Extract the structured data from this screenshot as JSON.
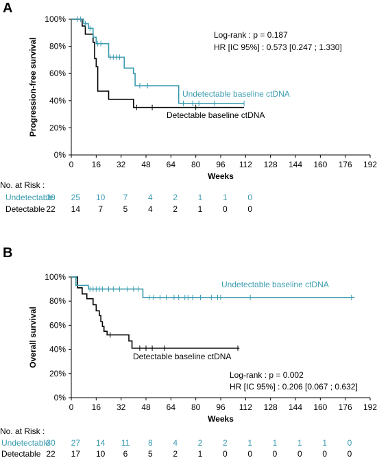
{
  "colors": {
    "undetectable": "#3a9bb0",
    "detectable": "#000000"
  },
  "chart_data": [
    {
      "type": "line",
      "panel_label": "A",
      "xlabel": "Weeks",
      "ylabel": "Progression-free survival",
      "xlim": [
        0,
        192
      ],
      "ylim": [
        0,
        100
      ],
      "x_ticks": [
        0,
        16,
        32,
        48,
        64,
        80,
        96,
        112,
        128,
        144,
        160,
        176,
        192
      ],
      "y_ticks": [
        {
          "value": 0,
          "label": "0%"
        },
        {
          "value": 20,
          "label": "20%"
        },
        {
          "value": 40,
          "label": "40%"
        },
        {
          "value": 60,
          "label": "60%"
        },
        {
          "value": 80,
          "label": "80%"
        },
        {
          "value": 100,
          "label": "100%"
        }
      ],
      "annotations": [
        "Log-rank : p = 0.187",
        "HR [IC 95%] : 0.573 [0.247 ; 1.330]"
      ],
      "series": [
        {
          "name": "Undetectable baseline ctDNA",
          "color": "#3a9bb0",
          "steps": [
            [
              0,
              100
            ],
            [
              8,
              96.7
            ],
            [
              11,
              93.3
            ],
            [
              14,
              86.7
            ],
            [
              16,
              82
            ],
            [
              21,
              82
            ],
            [
              24,
              72
            ],
            [
              32,
              72
            ],
            [
              34,
              64
            ],
            [
              40,
              60
            ],
            [
              41,
              51
            ],
            [
              53,
              51
            ],
            [
              68,
              51
            ],
            [
              69,
              38
            ],
            [
              111,
              38
            ]
          ],
          "censors": [
            [
              4,
              100
            ],
            [
              6,
              100
            ],
            [
              9,
              96.7
            ],
            [
              12,
              93.3
            ],
            [
              17,
              82
            ],
            [
              19,
              82
            ],
            [
              25,
              72
            ],
            [
              27,
              72
            ],
            [
              29,
              72
            ],
            [
              31,
              72
            ],
            [
              44,
              51
            ],
            [
              49,
              51
            ],
            [
              72,
              38
            ],
            [
              78,
              38
            ],
            [
              82,
              38
            ],
            [
              92,
              38
            ],
            [
              111,
              38
            ]
          ]
        },
        {
          "name": "Detectable baseline ctDNA",
          "color": "#000000",
          "steps": [
            [
              0,
              100
            ],
            [
              7,
              95
            ],
            [
              9,
              89
            ],
            [
              14,
              83
            ],
            [
              15,
              71
            ],
            [
              16,
              65
            ],
            [
              17,
              47
            ],
            [
              23,
              47
            ],
            [
              24,
              41
            ],
            [
              39,
              41
            ],
            [
              40,
              35
            ],
            [
              111,
              35
            ]
          ],
          "censors": [
            [
              42,
              35
            ],
            [
              52,
              35
            ],
            [
              80,
              35
            ]
          ]
        }
      ],
      "curve_labels": [
        {
          "text": "Undetectable baseline ctDNA",
          "series": 0
        },
        {
          "text": "Detectable baseline ctDNA",
          "series": 1
        }
      ],
      "risk_table": {
        "header": "No. at Risk :",
        "times": [
          0,
          16,
          32,
          48,
          64,
          80,
          96,
          112,
          128
        ],
        "rows": [
          {
            "label": "Undetectable",
            "color": "#3a9bb0",
            "values": [
              "30",
              "25",
              "10",
              "7",
              "4",
              "2",
              "1",
              "1",
              "0"
            ]
          },
          {
            "label": "Detectable",
            "color": "#000000",
            "values": [
              "22",
              "14",
              "7",
              "5",
              "4",
              "2",
              "1",
              "0",
              "0"
            ]
          }
        ]
      }
    },
    {
      "type": "line",
      "panel_label": "B",
      "xlabel": "Weeks",
      "ylabel": "Overall survival",
      "xlim": [
        0,
        192
      ],
      "ylim": [
        0,
        100
      ],
      "x_ticks": [
        0,
        16,
        32,
        48,
        64,
        80,
        96,
        112,
        128,
        144,
        160,
        176,
        192
      ],
      "y_ticks": [
        {
          "value": 0,
          "label": "0%"
        },
        {
          "value": 20,
          "label": "20%"
        },
        {
          "value": 40,
          "label": "40%"
        },
        {
          "value": 60,
          "label": "60%"
        },
        {
          "value": 80,
          "label": "80%"
        },
        {
          "value": 100,
          "label": "100%"
        }
      ],
      "annotations": [
        "Log-rank : p = 0.002",
        "HR [IC 95%] : 0.206 [0.067 ; 0.632]"
      ],
      "series": [
        {
          "name": "Undetectable baseline ctDNA",
          "color": "#3a9bb0",
          "steps": [
            [
              0,
              100
            ],
            [
              3,
              93
            ],
            [
              11,
              90
            ],
            [
              45,
              90
            ],
            [
              46,
              83
            ],
            [
              182,
              83
            ]
          ],
          "censors": [
            [
              12,
              90
            ],
            [
              14,
              90
            ],
            [
              16,
              90
            ],
            [
              18,
              90
            ],
            [
              20,
              90
            ],
            [
              24,
              90
            ],
            [
              27,
              90
            ],
            [
              31,
              90
            ],
            [
              36,
              90
            ],
            [
              40,
              90
            ],
            [
              43,
              90
            ],
            [
              50,
              83
            ],
            [
              53,
              83
            ],
            [
              57,
              83
            ],
            [
              61,
              83
            ],
            [
              66,
              83
            ],
            [
              69,
              83
            ],
            [
              73,
              83
            ],
            [
              75,
              83
            ],
            [
              78,
              83
            ],
            [
              83,
              83
            ],
            [
              90,
              83
            ],
            [
              94,
              83
            ],
            [
              96,
              83
            ],
            [
              115,
              83
            ],
            [
              180,
              83
            ]
          ]
        },
        {
          "name": "Detectable baseline ctDNA",
          "color": "#000000",
          "steps": [
            [
              0,
              100
            ],
            [
              4,
              91
            ],
            [
              7,
              86
            ],
            [
              10,
              82
            ],
            [
              14,
              77
            ],
            [
              16,
              72
            ],
            [
              18,
              68
            ],
            [
              19,
              63
            ],
            [
              20,
              59
            ],
            [
              21,
              55
            ],
            [
              23,
              52
            ],
            [
              36,
              52
            ],
            [
              37,
              47
            ],
            [
              39,
              41
            ],
            [
              108,
              41
            ]
          ],
          "censors": [
            [
              25,
              52
            ],
            [
              44,
              41
            ],
            [
              48,
              41
            ],
            [
              52,
              41
            ],
            [
              60,
              41
            ],
            [
              107,
              41
            ]
          ]
        }
      ],
      "curve_labels": [
        {
          "text": "Undetectable baseline ctDNA",
          "series": 0
        },
        {
          "text": "Detectable baseline ctDNA",
          "series": 1
        }
      ],
      "risk_table": {
        "header": "No. at Risk :",
        "times": [
          0,
          16,
          32,
          48,
          64,
          80,
          96,
          112,
          128,
          144,
          160,
          176,
          192
        ],
        "rows": [
          {
            "label": "Undetectable",
            "color": "#3a9bb0",
            "values": [
              "30",
              "27",
              "14",
              "11",
              "8",
              "4",
              "2",
              "2",
              "1",
              "1",
              "1",
              "1",
              "0"
            ]
          },
          {
            "label": "Detectable",
            "color": "#000000",
            "values": [
              "22",
              "17",
              "10",
              "6",
              "5",
              "2",
              "1",
              "0",
              "0",
              "0",
              "0",
              "0",
              "0"
            ]
          }
        ]
      }
    }
  ]
}
